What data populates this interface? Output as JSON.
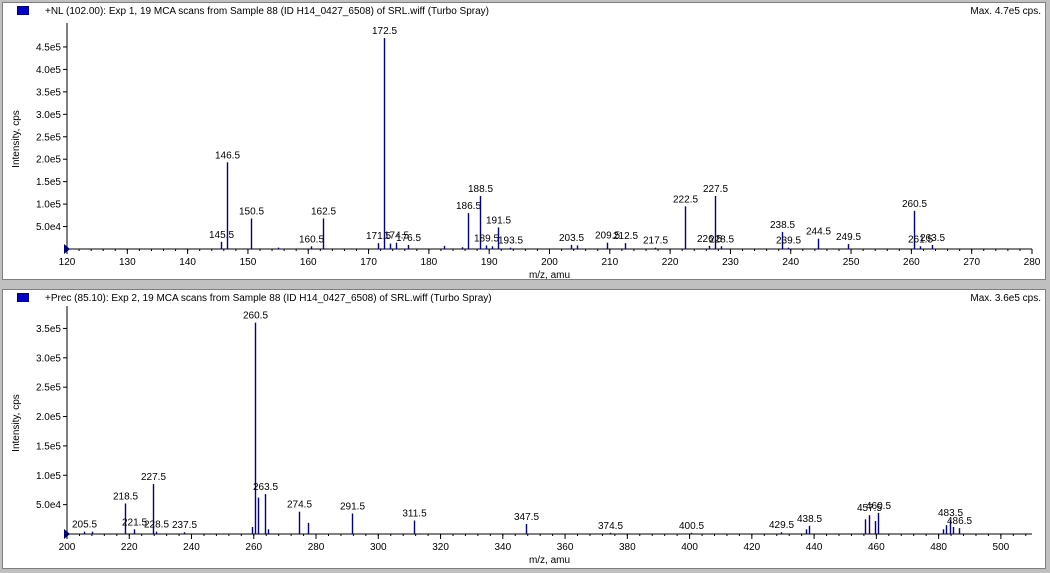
{
  "chart_data": [
    {
      "type": "bar",
      "title": "+NL (102.00): Exp 1, 19 MCA scans from Sample 88 (ID H14_0427_6508) of SRL.wiff (Turbo Spray)",
      "max_label": "Max. 4.7e5 cps.",
      "xlabel": "m/z, amu",
      "ylabel": "Intensity, cps",
      "xlim": [
        120,
        280
      ],
      "ylim": [
        0,
        490000
      ],
      "x_ticks": [
        120,
        130,
        140,
        150,
        160,
        170,
        180,
        190,
        200,
        210,
        220,
        230,
        240,
        250,
        260,
        270,
        280
      ],
      "y_ticks": [
        {
          "v": 50000,
          "t": "5.0e4"
        },
        {
          "v": 100000,
          "t": "1.0e5"
        },
        {
          "v": 150000,
          "t": "1.5e5"
        },
        {
          "v": 200000,
          "t": "2.0e5"
        },
        {
          "v": 250000,
          "t": "2.5e5"
        },
        {
          "v": 300000,
          "t": "3.0e5"
        },
        {
          "v": 350000,
          "t": "3.5e5"
        },
        {
          "v": 400000,
          "t": "4.0e5"
        },
        {
          "v": 450000,
          "t": "4.5e5"
        }
      ],
      "peaks": [
        {
          "x": 145.5,
          "y": 16000,
          "label": "145.5"
        },
        {
          "x": 146.5,
          "y": 193000,
          "label": "146.5"
        },
        {
          "x": 150.5,
          "y": 68000,
          "label": "150.5"
        },
        {
          "x": 155.0,
          "y": 3000
        },
        {
          "x": 160.5,
          "y": 6000,
          "label": "160.5"
        },
        {
          "x": 162.5,
          "y": 68000,
          "label": "162.5"
        },
        {
          "x": 171.5,
          "y": 13000,
          "label": "171.5"
        },
        {
          "x": 172.5,
          "y": 470000,
          "label": "172.5"
        },
        {
          "x": 173.5,
          "y": 12000
        },
        {
          "x": 174.5,
          "y": 14000,
          "label": "174.5"
        },
        {
          "x": 176.5,
          "y": 9000,
          "label": "176.5"
        },
        {
          "x": 182.5,
          "y": 7000
        },
        {
          "x": 185.5,
          "y": 4000
        },
        {
          "x": 186.5,
          "y": 80000,
          "label": "186.5"
        },
        {
          "x": 188.5,
          "y": 118000,
          "label": "188.5"
        },
        {
          "x": 189.5,
          "y": 8000,
          "label": "189.5"
        },
        {
          "x": 190.5,
          "y": 6000
        },
        {
          "x": 191.5,
          "y": 48000,
          "label": "191.5"
        },
        {
          "x": 193.5,
          "y": 3000,
          "label": "193.5"
        },
        {
          "x": 203.5,
          "y": 9000,
          "label": "203.5"
        },
        {
          "x": 204.5,
          "y": 8000
        },
        {
          "x": 209.5,
          "y": 14000,
          "label": "209.5"
        },
        {
          "x": 212.5,
          "y": 13000,
          "label": "212.5"
        },
        {
          "x": 217.5,
          "y": 3000,
          "label": "217.5"
        },
        {
          "x": 222.5,
          "y": 95000,
          "label": "222.5"
        },
        {
          "x": 226.5,
          "y": 7000,
          "label": "226.5"
        },
        {
          "x": 227.5,
          "y": 118000,
          "label": "227.5"
        },
        {
          "x": 228.5,
          "y": 6000,
          "label": "228.5"
        },
        {
          "x": 238.5,
          "y": 38000,
          "label": "238.5"
        },
        {
          "x": 239.5,
          "y": 3000,
          "label": "239.5"
        },
        {
          "x": 244.5,
          "y": 23000,
          "label": "244.5"
        },
        {
          "x": 249.5,
          "y": 11000,
          "label": "249.5"
        },
        {
          "x": 260.5,
          "y": 85000,
          "label": "260.5"
        },
        {
          "x": 261.5,
          "y": 6000,
          "label": "261.5"
        },
        {
          "x": 263.5,
          "y": 9000,
          "label": "263.5"
        }
      ]
    },
    {
      "type": "bar",
      "title": "+Prec (85.10): Exp 2, 19 MCA scans from Sample 88 (ID H14_0427_6508) of SRL.wiff (Turbo Spray)",
      "max_label": "Max. 3.6e5 cps.",
      "xlabel": "m/z, amu",
      "ylabel": "Intensity, cps",
      "xlim": [
        200,
        510
      ],
      "ylim": [
        0,
        378000
      ],
      "x_ticks": [
        200,
        220,
        240,
        260,
        280,
        300,
        320,
        340,
        360,
        380,
        400,
        420,
        440,
        460,
        480,
        500
      ],
      "y_ticks": [
        {
          "v": 50000,
          "t": "5.0e4"
        },
        {
          "v": 100000,
          "t": "1.0e5"
        },
        {
          "v": 150000,
          "t": "1.5e5"
        },
        {
          "v": 200000,
          "t": "2.0e5"
        },
        {
          "v": 250000,
          "t": "2.5e5"
        },
        {
          "v": 300000,
          "t": "3.0e5"
        },
        {
          "v": 350000,
          "t": "3.5e5"
        }
      ],
      "peaks": [
        {
          "x": 205.5,
          "y": 4000,
          "label": "205.5"
        },
        {
          "x": 208.0,
          "y": 4000
        },
        {
          "x": 218.5,
          "y": 52000,
          "label": "218.5"
        },
        {
          "x": 221.5,
          "y": 8000,
          "label": "221.5"
        },
        {
          "x": 227.5,
          "y": 85000,
          "label": "227.5"
        },
        {
          "x": 228.5,
          "y": 4000,
          "label": "228.5"
        },
        {
          "x": 237.5,
          "y": 3000,
          "label": "237.5"
        },
        {
          "x": 259.5,
          "y": 12000
        },
        {
          "x": 260.5,
          "y": 360000,
          "label": "260.5"
        },
        {
          "x": 261.5,
          "y": 62000
        },
        {
          "x": 263.5,
          "y": 68000,
          "label": "263.5"
        },
        {
          "x": 264.5,
          "y": 8000
        },
        {
          "x": 274.5,
          "y": 38000,
          "label": "274.5"
        },
        {
          "x": 277.5,
          "y": 19000
        },
        {
          "x": 291.5,
          "y": 35000,
          "label": "291.5"
        },
        {
          "x": 311.5,
          "y": 23000,
          "label": "311.5"
        },
        {
          "x": 347.5,
          "y": 17000,
          "label": "347.5"
        },
        {
          "x": 374.5,
          "y": 2000,
          "label": "374.5"
        },
        {
          "x": 400.5,
          "y": 2000,
          "label": "400.5"
        },
        {
          "x": 429.5,
          "y": 3000,
          "label": "429.5"
        },
        {
          "x": 437.5,
          "y": 8000
        },
        {
          "x": 438.5,
          "y": 14000,
          "label": "438.5"
        },
        {
          "x": 456.5,
          "y": 25000
        },
        {
          "x": 457.5,
          "y": 32000,
          "label": "457.5"
        },
        {
          "x": 459.5,
          "y": 22000
        },
        {
          "x": 460.5,
          "y": 36000,
          "label": "460.5"
        },
        {
          "x": 481.5,
          "y": 8000
        },
        {
          "x": 482.5,
          "y": 15000
        },
        {
          "x": 483.5,
          "y": 24000,
          "label": "483.5"
        },
        {
          "x": 484.5,
          "y": 12000
        },
        {
          "x": 486.5,
          "y": 10000,
          "label": "486.5"
        }
      ]
    }
  ]
}
